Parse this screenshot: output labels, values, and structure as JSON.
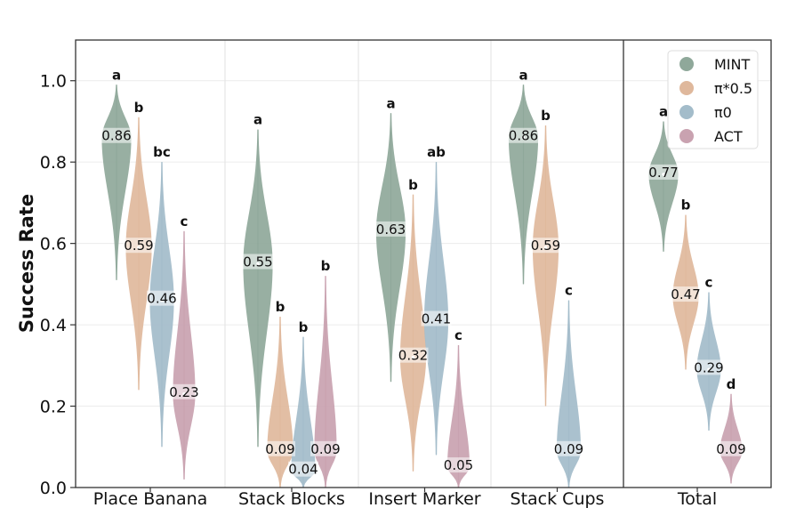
{
  "chart_data": {
    "type": "violin",
    "ylabel": "Success Rate",
    "ylim": [
      0,
      1.1
    ],
    "yticks": [
      "0.0",
      "0.2",
      "0.4",
      "0.6",
      "0.8",
      "1.0"
    ],
    "grid": true,
    "legend_position": "top-right",
    "categories": [
      "Place Banana",
      "Stack Blocks",
      "Insert Marker",
      "Stack Cups",
      "Total"
    ],
    "series": [
      {
        "name": "MINT",
        "color": "#8fa89a"
      },
      {
        "name": "π*0.5",
        "color": "#dfb89c"
      },
      {
        "name": "π0",
        "color": "#a3bcca"
      },
      {
        "name": "ACT",
        "color": "#c9a2b0"
      }
    ],
    "groups": [
      {
        "category": "Place Banana",
        "violins": [
          {
            "series": "MINT",
            "mean": 0.86,
            "label": "0.86",
            "sig": "a",
            "min": 0.51,
            "max": 0.99
          },
          {
            "series": "π*0.5",
            "mean": 0.59,
            "label": "0.59",
            "sig": "b",
            "min": 0.24,
            "max": 0.91
          },
          {
            "series": "π0",
            "mean": 0.46,
            "label": "0.46",
            "sig": "bc",
            "min": 0.1,
            "max": 0.8
          },
          {
            "series": "ACT",
            "mean": 0.23,
            "label": "0.23",
            "sig": "c",
            "min": 0.02,
            "max": 0.63
          }
        ]
      },
      {
        "category": "Stack Blocks",
        "violins": [
          {
            "series": "MINT",
            "mean": 0.55,
            "label": "0.55",
            "sig": "a",
            "min": 0.1,
            "max": 0.88
          },
          {
            "series": "π*0.5",
            "mean": 0.09,
            "label": "0.09",
            "sig": "b",
            "min": 0.0,
            "max": 0.42
          },
          {
            "series": "π0",
            "mean": 0.04,
            "label": "0.04",
            "sig": "b",
            "min": 0.0,
            "max": 0.37
          },
          {
            "series": "ACT",
            "mean": 0.09,
            "label": "0.09",
            "sig": "b",
            "min": 0.0,
            "max": 0.52
          }
        ]
      },
      {
        "category": "Insert Marker",
        "violins": [
          {
            "series": "MINT",
            "mean": 0.63,
            "label": "0.63",
            "sig": "a",
            "min": 0.26,
            "max": 0.92
          },
          {
            "series": "π*0.5",
            "mean": 0.32,
            "label": "0.32",
            "sig": "b",
            "min": 0.04,
            "max": 0.72
          },
          {
            "series": "π0",
            "mean": 0.41,
            "label": "0.41",
            "sig": "ab",
            "min": 0.08,
            "max": 0.8
          },
          {
            "series": "ACT",
            "mean": 0.05,
            "label": "0.05",
            "sig": "c",
            "min": 0.0,
            "max": 0.35
          }
        ]
      },
      {
        "category": "Stack Cups",
        "violins": [
          {
            "series": "MINT",
            "mean": 0.86,
            "label": "0.86",
            "sig": "a",
            "min": 0.5,
            "max": 0.99
          },
          {
            "series": "π*0.5",
            "mean": 0.59,
            "label": "0.59",
            "sig": "b",
            "min": 0.2,
            "max": 0.89
          },
          {
            "series": "π0",
            "mean": 0.09,
            "label": "0.09",
            "sig": "c",
            "min": 0.0,
            "max": 0.46
          },
          {
            "series": "ACT",
            "mean": null,
            "label": "",
            "sig": "",
            "min": null,
            "max": null
          }
        ]
      },
      {
        "category": "Total",
        "violins": [
          {
            "series": "MINT",
            "mean": 0.77,
            "label": "0.77",
            "sig": "a",
            "min": 0.58,
            "max": 0.9
          },
          {
            "series": "π*0.5",
            "mean": 0.47,
            "label": "0.47",
            "sig": "b",
            "min": 0.29,
            "max": 0.67
          },
          {
            "series": "π0",
            "mean": 0.29,
            "label": "0.29",
            "sig": "c",
            "min": 0.14,
            "max": 0.48
          },
          {
            "series": "ACT",
            "mean": 0.09,
            "label": "0.09",
            "sig": "d",
            "min": 0.01,
            "max": 0.23
          }
        ]
      }
    ]
  }
}
